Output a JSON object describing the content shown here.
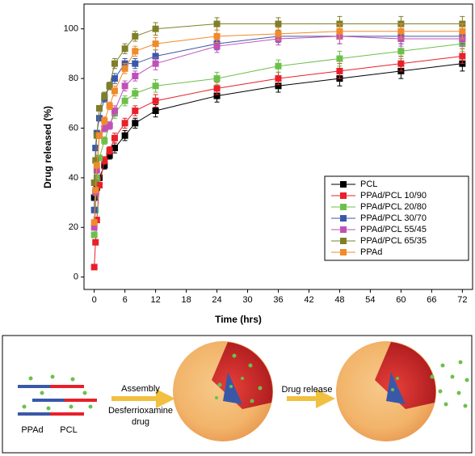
{
  "chart_data": {
    "type": "line",
    "x_label": "Time (hrs)",
    "y_label": "Drug released (%)",
    "xlim": [
      -2,
      74
    ],
    "xticks": [
      0,
      6,
      12,
      18,
      24,
      30,
      36,
      42,
      48,
      54,
      60,
      66,
      72
    ],
    "ylim": [
      -5,
      110
    ],
    "yticks": [
      0,
      20,
      40,
      60,
      80,
      100
    ],
    "legend": "right",
    "x": [
      0,
      0.25,
      0.5,
      1,
      2,
      3,
      4,
      6,
      8,
      12,
      24,
      36,
      48,
      60,
      72
    ],
    "series": [
      {
        "name": "PCL",
        "color": "#000000",
        "values": [
          32,
          34,
          36,
          40,
          45,
          49,
          52,
          57,
          62,
          67,
          73,
          77,
          80,
          83,
          86
        ],
        "errors": [
          1,
          1,
          1,
          1,
          1.5,
          1.5,
          2,
          2,
          2,
          2.5,
          2.5,
          2.5,
          3,
          3,
          3
        ]
      },
      {
        "name": "PPAd/PCL 10/90",
        "color": "#e8202a",
        "values": [
          4,
          14,
          23,
          37,
          47,
          51,
          56,
          62,
          67,
          71,
          76,
          80,
          83,
          86,
          89
        ],
        "errors": [
          1,
          1,
          1,
          1,
          1.5,
          1.5,
          2,
          2,
          2,
          2.5,
          2.5,
          2.5,
          3,
          3,
          3
        ]
      },
      {
        "name": "PPAd/PCL 20/80",
        "color": "#6cc04a",
        "values": [
          17,
          27,
          40,
          48,
          55,
          61,
          66,
          71,
          74,
          77,
          80,
          85,
          88,
          91,
          94
        ],
        "errors": [
          1,
          1,
          1,
          1,
          1.5,
          1.5,
          2,
          2,
          2,
          2.5,
          2.5,
          2.5,
          3,
          3,
          3
        ]
      },
      {
        "name": "PPAd/PCL 30/70",
        "color": "#3a58a8",
        "values": [
          27,
          52,
          58,
          64,
          72,
          77,
          80,
          86,
          86,
          89,
          94,
          97,
          97,
          97,
          97
        ],
        "errors": [
          1,
          1,
          1,
          1,
          1.5,
          1.5,
          2,
          2,
          2,
          2.5,
          2.5,
          2.5,
          3,
          3,
          3
        ]
      },
      {
        "name": "PPAd/PCL 55/45",
        "color": "#c050b8",
        "values": [
          20,
          34,
          43,
          57,
          60,
          61,
          67,
          77,
          81,
          86,
          93,
          96,
          97,
          96,
          96
        ],
        "errors": [
          1,
          1,
          1,
          1,
          1.5,
          1.5,
          2,
          2,
          2,
          2.5,
          2.5,
          2.5,
          3,
          3,
          3
        ]
      },
      {
        "name": "PPAd/PCL 65/35",
        "color": "#7f7f2a",
        "values": [
          38,
          47,
          57,
          68,
          73,
          77,
          86,
          92,
          97,
          100,
          102,
          102,
          102,
          102,
          102
        ],
        "errors": [
          1,
          1,
          1,
          1,
          1.5,
          1.5,
          2,
          2,
          2,
          2.5,
          2.5,
          2.5,
          3,
          3,
          3
        ]
      },
      {
        "name": "PPAd",
        "color": "#f08a2a",
        "values": [
          22,
          35,
          45,
          57,
          63,
          69,
          75,
          84,
          91,
          94,
          97,
          98,
          99,
          99,
          99
        ],
        "errors": [
          1,
          1,
          1,
          1,
          1.5,
          1.5,
          2,
          2,
          2,
          2.5,
          2.5,
          2.5,
          3,
          3,
          3
        ]
      }
    ]
  },
  "diagram": {
    "polymer_labels": [
      "PPAd",
      "PCL"
    ],
    "step1": "Assembly",
    "step1_agent": [
      "Desferrioxamine",
      "drug"
    ],
    "step2": "Drug release"
  }
}
